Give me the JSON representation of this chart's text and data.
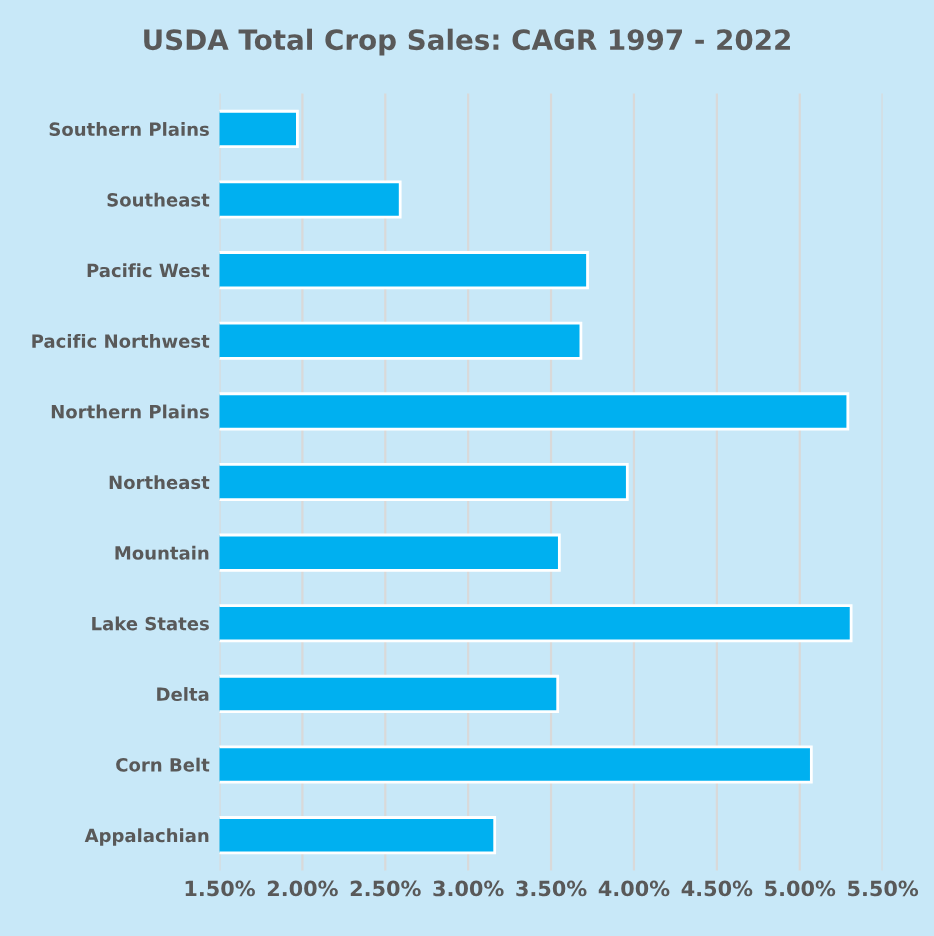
{
  "chart_data": {
    "type": "bar",
    "orientation": "horizontal",
    "title": "USDA Total Crop Sales: CAGR 1997 - 2022",
    "categories": [
      "Southern Plains",
      "Southeast",
      "Pacific West",
      "Pacific Northwest",
      "Northern Plains",
      "Northeast",
      "Mountain",
      "Lake States",
      "Delta",
      "Corn Belt",
      "Appalachian"
    ],
    "values": [
      1.97,
      2.59,
      3.72,
      3.68,
      5.29,
      3.96,
      3.55,
      5.31,
      3.54,
      5.07,
      3.16
    ],
    "color": "#00b0f0",
    "xlim": [
      1.5,
      5.5
    ],
    "xticks": [
      {
        "value": 1.5,
        "label": "1.50%"
      },
      {
        "value": 2.0,
        "label": "2.00%"
      },
      {
        "value": 2.5,
        "label": "2.50%"
      },
      {
        "value": 3.0,
        "label": "3.00%"
      },
      {
        "value": 3.5,
        "label": "3.50%"
      },
      {
        "value": 4.0,
        "label": "4.00%"
      },
      {
        "value": 4.5,
        "label": "4.50%"
      },
      {
        "value": 5.0,
        "label": "5.00%"
      },
      {
        "value": 5.5,
        "label": "5.50%"
      }
    ],
    "grid": "x",
    "legend": false
  }
}
